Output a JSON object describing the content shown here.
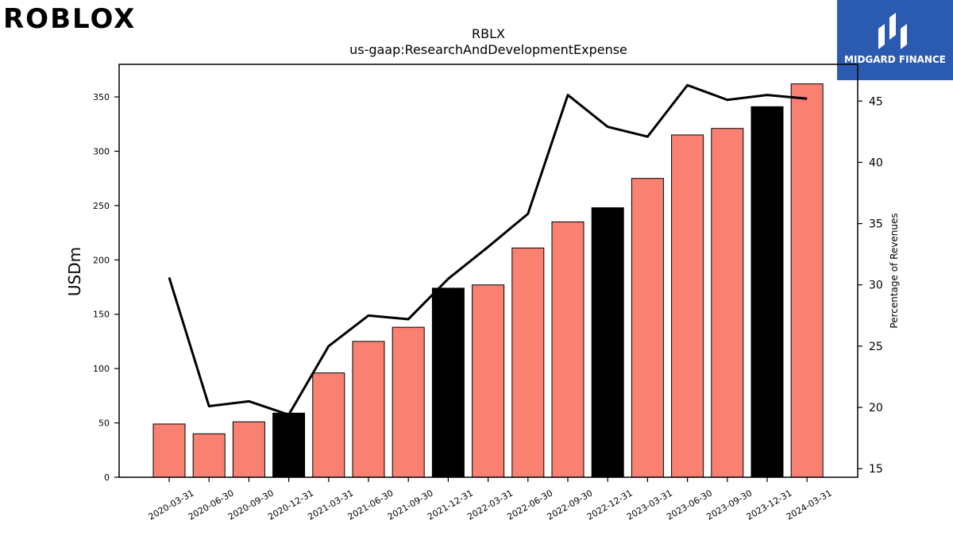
{
  "brand": {
    "logo_text": "ROBLOX",
    "partner_name": "MIDGARD FINANCE"
  },
  "chart_data": {
    "type": "bar",
    "title": "RBLX",
    "subtitle": "us-gaap:ResearchAndDevelopmentExpense",
    "ylabel": "USDm",
    "y2label": "Percentage of Revenues",
    "ylim": [
      0,
      380
    ],
    "y2lim": [
      14.3,
      48
    ],
    "yticks": [
      0,
      50,
      100,
      150,
      200,
      250,
      300,
      350
    ],
    "y2ticks": [
      15,
      20,
      25,
      30,
      35,
      40,
      45
    ],
    "categories": [
      "2020-03-31",
      "2020-06-30",
      "2020-09-30",
      "2020-12-31",
      "2021-03-31",
      "2021-06-30",
      "2021-09-30",
      "2021-12-31",
      "2022-03-31",
      "2022-06-30",
      "2022-09-30",
      "2022-12-31",
      "2023-03-31",
      "2023-06-30",
      "2023-09-30",
      "2023-12-31",
      "2024-03-31"
    ],
    "series": [
      {
        "type": "bar",
        "values": [
          49,
          40,
          51,
          59,
          96,
          125,
          138,
          174,
          177,
          211,
          235,
          248,
          275,
          315,
          321,
          341,
          362
        ],
        "colors": [
          "#fa8072",
          "#fa8072",
          "#fa8072",
          "#000000",
          "#fa8072",
          "#fa8072",
          "#fa8072",
          "#000000",
          "#fa8072",
          "#fa8072",
          "#fa8072",
          "#000000",
          "#fa8072",
          "#fa8072",
          "#fa8072",
          "#000000",
          "#fa8072"
        ]
      },
      {
        "type": "line",
        "axis": "right",
        "color": "#000000",
        "values": [
          30.6,
          20.1,
          20.5,
          19.4,
          25.0,
          27.5,
          27.2,
          30.5,
          33.1,
          35.8,
          45.5,
          42.9,
          42.1,
          46.3,
          45.1,
          45.5,
          45.2
        ]
      }
    ],
    "grid": false
  }
}
